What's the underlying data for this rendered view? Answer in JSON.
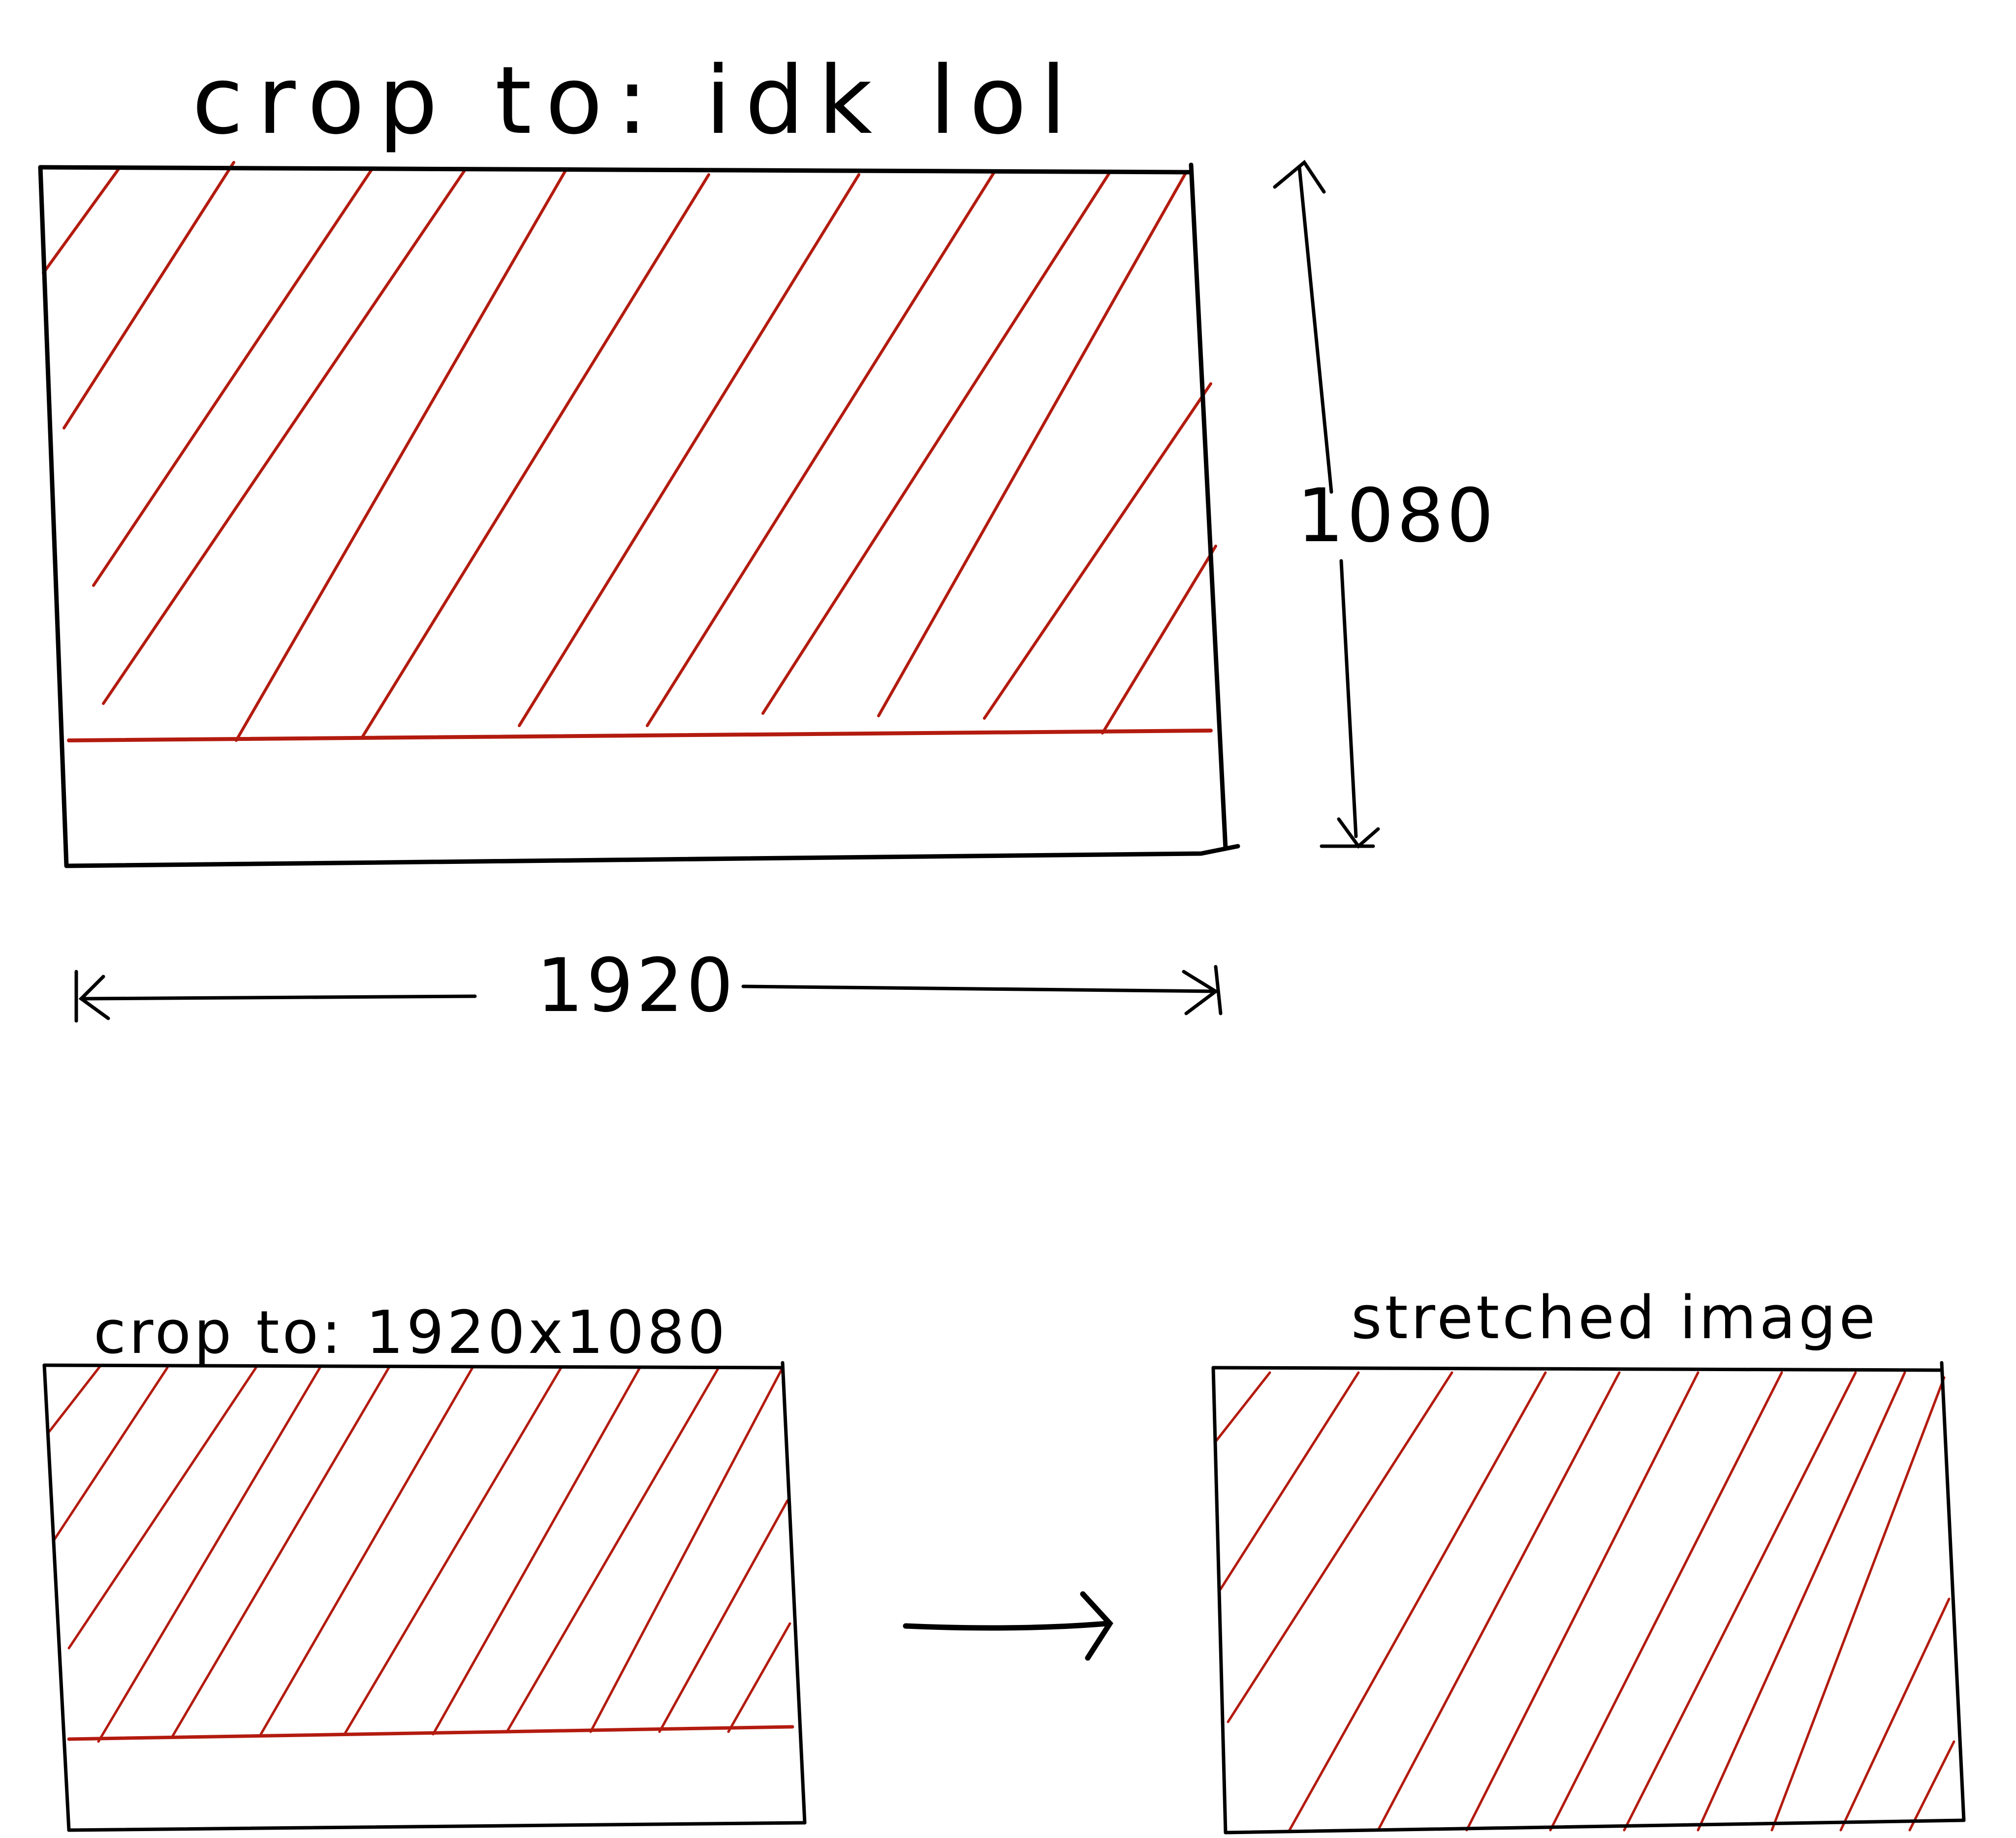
{
  "colors": {
    "ink": "#000000",
    "hatch": "#b31b0f",
    "background": "#ffffff"
  },
  "top_sketch": {
    "label": "crop to: idk lol",
    "width_label": "1920",
    "height_label": "1080"
  },
  "bottom_left_sketch": {
    "label": "crop to: 1920x1080"
  },
  "bottom_right_sketch": {
    "label": "stretched image"
  },
  "icons": {
    "transform_arrow": "right-arrow-icon",
    "width_dimension": "double-headed-horizontal-arrow",
    "height_dimension": "double-headed-vertical-arrow"
  }
}
